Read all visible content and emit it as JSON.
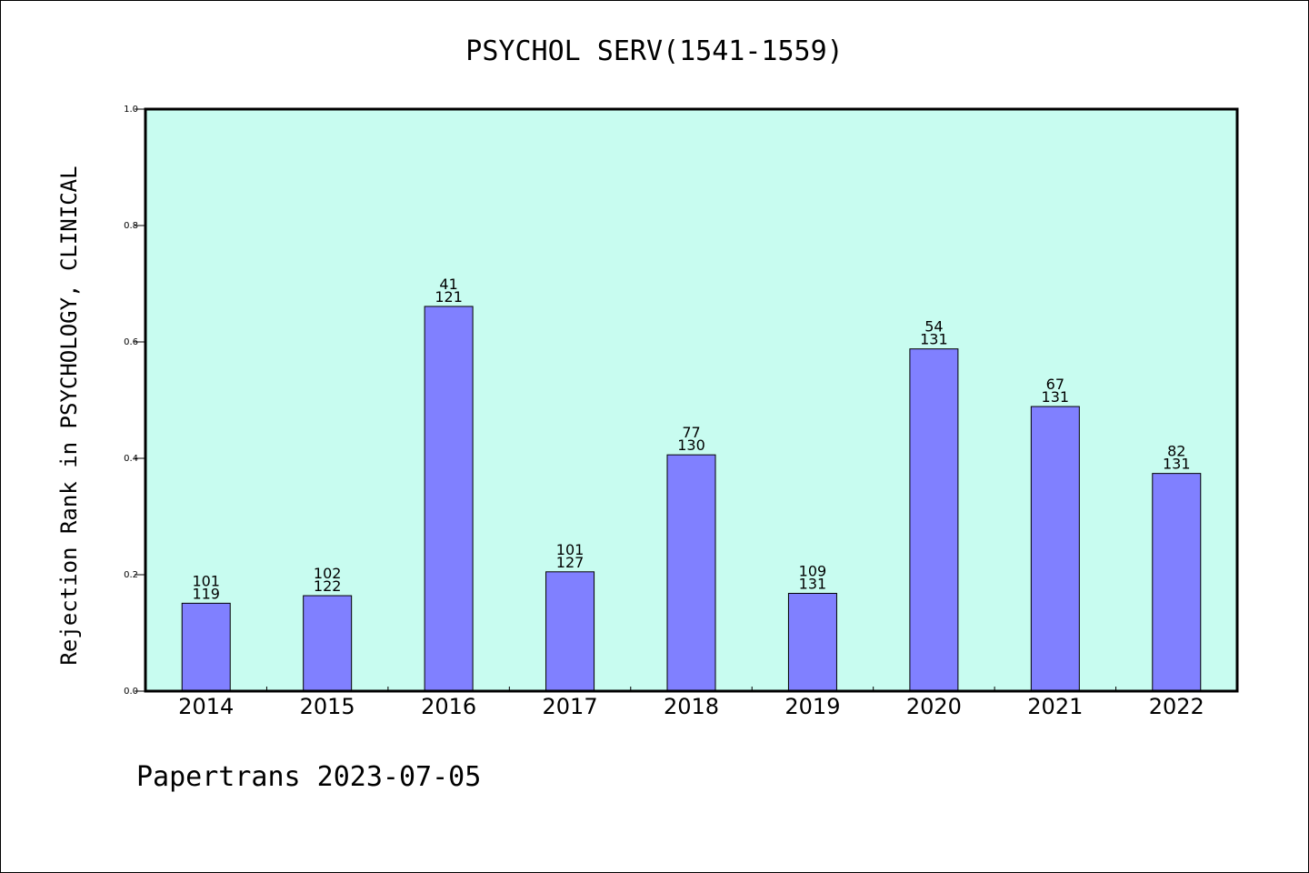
{
  "chart_data": {
    "type": "bar",
    "title": "PSYCHOL SERV(1541-1559)",
    "ylabel": "Rejection Rank in PSYCHOLOGY, CLINICAL",
    "xlabel": "",
    "categories": [
      "2014",
      "2015",
      "2016",
      "2017",
      "2018",
      "2019",
      "2020",
      "2021",
      "2022"
    ],
    "values": [
      0.151,
      0.164,
      0.661,
      0.205,
      0.406,
      0.168,
      0.588,
      0.489,
      0.374
    ],
    "labels_top": [
      "101",
      "102",
      "41",
      "101",
      "77",
      "109",
      "54",
      "67",
      "82"
    ],
    "labels_bottom": [
      "119",
      "122",
      "121",
      "127",
      "130",
      "131",
      "131",
      "131",
      "131"
    ],
    "ylim": [
      0,
      1.0
    ],
    "yticks": [
      "0.0",
      "0.2",
      "0.4",
      "0.6",
      "0.8",
      "1.0"
    ],
    "grid": false,
    "legend": "none",
    "plot_background": "#c8fcf0",
    "bar_color": "#8080ff",
    "footer": "Papertrans 2023-07-05"
  }
}
